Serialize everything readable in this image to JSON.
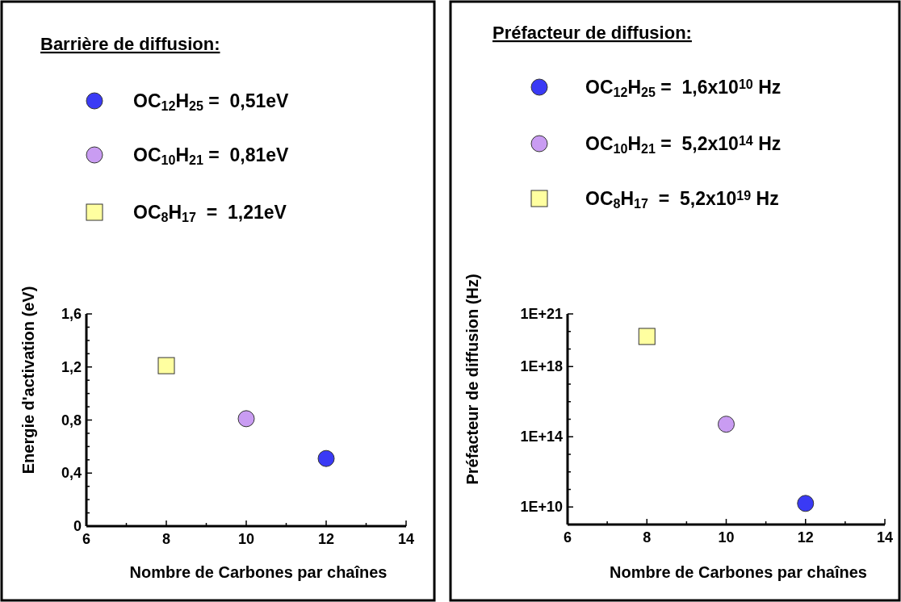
{
  "chart_data": [
    {
      "type": "scatter",
      "legend_title": "Barrière de diffusion:",
      "legend": "top",
      "xlabel": "Nombre de Carbones par chaînes",
      "ylabel": "Energie d'activation (eV)",
      "xlim": [
        6,
        14
      ],
      "xticks": [
        6,
        {
          "value": 7,
          "label": null
        },
        8,
        {
          "value": 9,
          "label": null
        },
        10,
        {
          "value": 11,
          "label": null
        },
        12,
        {
          "value": 13,
          "label": null
        },
        14
      ],
      "ylim": [
        0,
        1.6
      ],
      "yticks": [
        0,
        {
          "value": 0.1,
          "label": null
        },
        {
          "value": 0.2,
          "label": null
        },
        {
          "value": 0.3,
          "label": null
        },
        {
          "value": 0.4,
          "label": "0,4"
        },
        {
          "value": 0.5,
          "label": null
        },
        {
          "value": 0.6,
          "label": null
        },
        {
          "value": 0.7,
          "label": null
        },
        {
          "value": 0.8,
          "label": "0,8"
        },
        {
          "value": 0.9,
          "label": null
        },
        {
          "value": 1.0,
          "label": null
        },
        {
          "value": 1.1,
          "label": null
        },
        {
          "value": 1.2,
          "label": "1,2"
        },
        {
          "value": 1.3,
          "label": null
        },
        {
          "value": 1.4,
          "label": null
        },
        {
          "value": 1.5,
          "label": null
        },
        {
          "value": 1.6,
          "label": "1,6"
        }
      ],
      "series": [
        {
          "name": "OC$_{12}$H$_{25}$ =  0,51eV",
          "color": "#3a3af5",
          "marker": "circle",
          "x": [
            12
          ],
          "values": [
            0.51
          ]
        },
        {
          "name": "OC$_{10}$H$_{21}$ =  0,81eV",
          "color": "#c99cf2",
          "marker": "circle",
          "x": [
            10
          ],
          "values": [
            0.81
          ]
        },
        {
          "name": "OC$_{8}$H$_{17}$  =  1,21eV",
          "color": "#ffffa0",
          "marker": "square",
          "x": [
            8
          ],
          "values": [
            1.21
          ]
        }
      ]
    },
    {
      "type": "scatter",
      "legend_title": "Préfacteur de diffusion:",
      "legend": "top",
      "xlabel": "Nombre de Carbones par chaînes",
      "ylabel": "Préfacteur de diffusion (Hz)",
      "log": "y",
      "xlim": [
        6,
        14
      ],
      "xticks": [
        6,
        {
          "value": 7,
          "label": null
        },
        8,
        {
          "value": 9,
          "label": null
        },
        10,
        {
          "value": 11,
          "label": null
        },
        12,
        {
          "value": 13,
          "label": null
        },
        14
      ],
      "ylim": [
        1000000000.0,
        1e+21
      ],
      "yticks": [
        {
          "value": 10000000000.0,
          "label": "1E+10"
        },
        {
          "value": 100000000000.0,
          "label": null
        },
        {
          "value": 1000000000000.0,
          "label": null
        },
        {
          "value": 10000000000000.0,
          "label": null
        },
        {
          "value": 100000000000000.0,
          "label": "1E+14"
        },
        {
          "value": 1000000000000000.0,
          "label": null
        },
        {
          "value": 1e+16,
          "label": null
        },
        {
          "value": 1e+17,
          "label": null
        },
        {
          "value": 1e+18,
          "label": "1E+18"
        },
        {
          "value": 1e+19,
          "label": null
        },
        {
          "value": 1e+20,
          "label": null
        },
        {
          "value": 1e+21,
          "label": "1E+21"
        }
      ],
      "series": [
        {
          "name": "OC$_{12}$H$_{25}$ =  1,6x10$^{10}$ Hz",
          "color": "#3a3af5",
          "marker": "circle",
          "x": [
            12
          ],
          "values": [
            16000000000.0
          ]
        },
        {
          "name": "OC$_{10}$H$_{21}$ =  5,2x10$^{14}$ Hz",
          "color": "#c99cf2",
          "marker": "circle",
          "x": [
            10
          ],
          "values": [
            520000000000000.0
          ]
        },
        {
          "name": "OC$_{8}$H$_{17}$  =  5,2x10$^{19}$ Hz",
          "color": "#ffffa0",
          "marker": "square",
          "x": [
            8
          ],
          "values": [
            5.2e+19
          ]
        }
      ]
    }
  ]
}
